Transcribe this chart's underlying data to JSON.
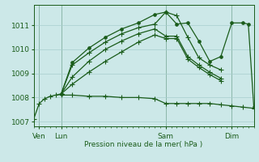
{
  "xlabel": "Pression niveau de la mer( hPa )",
  "background_color": "#cce8e8",
  "grid_color": "#a8cece",
  "line_color": "#1a5c1a",
  "ylim": [
    1006.8,
    1011.85
  ],
  "xlim": [
    0,
    20
  ],
  "yticks": [
    1007,
    1008,
    1009,
    1010,
    1011
  ],
  "xtick_positions": [
    0.5,
    2.5,
    12,
    18
  ],
  "xtick_labels": [
    "Ven",
    "Lun",
    "Sam",
    "Dim"
  ],
  "vlines": [
    0.5,
    2.5,
    12,
    18
  ],
  "lines": [
    {
      "x": [
        0,
        0.5,
        1.0,
        1.5,
        2.0,
        2.5,
        3.5,
        5.0,
        6.5,
        8.0,
        9.5,
        11.0,
        12.0,
        13.0,
        14.0,
        15.0,
        16.0,
        17.0
      ],
      "y": [
        1007.1,
        1007.75,
        1007.95,
        1008.05,
        1008.1,
        1008.15,
        1009.35,
        1009.85,
        1010.3,
        1010.65,
        1010.9,
        1011.05,
        1011.55,
        1011.4,
        1010.5,
        1009.65,
        1009.35,
        1009.15
      ],
      "marker": "+"
    },
    {
      "x": [
        2.5,
        3.5,
        5.0,
        6.5,
        8.0,
        9.5,
        11.0,
        12.0,
        13.0,
        14.0,
        15.0,
        16.0,
        17.0
      ],
      "y": [
        1008.15,
        1008.85,
        1009.5,
        1010.0,
        1010.35,
        1010.65,
        1010.85,
        1010.55,
        1010.55,
        1009.7,
        1009.35,
        1009.05,
        1008.8
      ],
      "marker": "+"
    },
    {
      "x": [
        2.5,
        3.5,
        5.0,
        6.5,
        8.0,
        9.5,
        11.0,
        12.0,
        13.0,
        14.0,
        15.0,
        16.0,
        17.0
      ],
      "y": [
        1008.15,
        1008.55,
        1009.05,
        1009.5,
        1009.9,
        1010.3,
        1010.6,
        1010.45,
        1010.45,
        1009.6,
        1009.25,
        1008.95,
        1008.7
      ],
      "marker": "+"
    },
    {
      "x": [
        2.5,
        3.5,
        5.0,
        6.5,
        8.0,
        9.5,
        11.0,
        12.0,
        13.0,
        14.0,
        15.0,
        16.0,
        17.0,
        18.0,
        19.0,
        20.0
      ],
      "y": [
        1008.1,
        1008.1,
        1008.05,
        1008.05,
        1008.0,
        1008.0,
        1007.95,
        1007.75,
        1007.75,
        1007.75,
        1007.75,
        1007.75,
        1007.7,
        1007.65,
        1007.6,
        1007.55
      ],
      "marker": "+"
    },
    {
      "x": [
        2.5,
        3.5,
        5.0,
        6.5,
        8.0,
        9.5,
        11.0,
        12.0,
        13.0,
        14.0,
        15.0,
        16.0,
        17.0,
        18.0,
        19.0,
        19.5,
        20.0
      ],
      "y": [
        1008.15,
        1009.45,
        1010.05,
        1010.5,
        1010.85,
        1011.1,
        1011.45,
        1011.55,
        1011.05,
        1011.1,
        1010.35,
        1009.5,
        1009.7,
        1011.1,
        1011.1,
        1011.05,
        1007.6
      ],
      "marker": "o"
    }
  ]
}
